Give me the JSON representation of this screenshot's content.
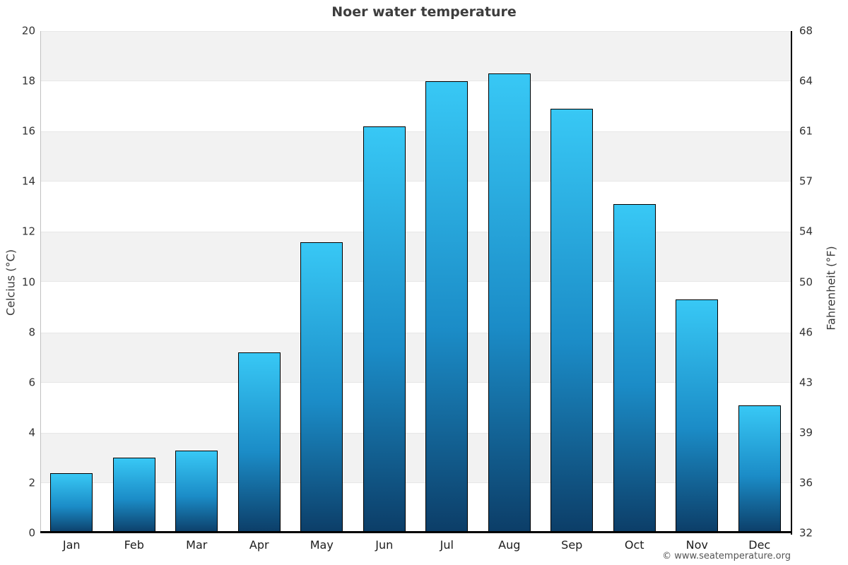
{
  "chart_data": {
    "type": "bar",
    "title": "Noer water temperature",
    "categories": [
      "Jan",
      "Feb",
      "Mar",
      "Apr",
      "May",
      "Jun",
      "Jul",
      "Aug",
      "Sep",
      "Oct",
      "Nov",
      "Dec"
    ],
    "values": [
      2.4,
      3.0,
      3.3,
      7.2,
      11.6,
      16.2,
      18.0,
      18.3,
      16.9,
      13.1,
      9.3,
      5.1
    ],
    "value_unit": "°C",
    "left_axis": {
      "label": "Celcius (°C)",
      "ticks": [
        20,
        18,
        16,
        14,
        12,
        10,
        8,
        6,
        4,
        2,
        0
      ],
      "range": [
        0,
        20
      ]
    },
    "right_axis": {
      "label": "Fahrenheit (°F)",
      "ticks": [
        68,
        64,
        61,
        57,
        54,
        50,
        46,
        43,
        39,
        36,
        32
      ]
    },
    "grid": "alternating horizontal bands, gray on 18-20/14-16/10-12/6-8/2-4",
    "legend": "none",
    "colors": {
      "bar_gradient_top": "#38c8f5",
      "bar_gradient_mid": "#1b8cc7",
      "bar_gradient_bottom": "#0c3d67",
      "bar_border": "#000000",
      "band_gray": "#f2f2f2",
      "band_white": "#ffffff",
      "left_axis_line": "#c0c0c0",
      "right_axis_line": "#000000",
      "bottom_axis_line": "#000000",
      "title_color": "#3d3d3d"
    }
  },
  "footer": {
    "copyright": "© www.seatemperature.org"
  }
}
